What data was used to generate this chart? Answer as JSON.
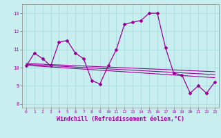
{
  "xlabel": "Windchill (Refroidissement éolien,°C)",
  "ylabel": "",
  "background_color": "#c8eef0",
  "line_color": "#990099",
  "xlim": [
    -0.5,
    23.5
  ],
  "ylim": [
    7.8,
    13.5
  ],
  "yticks": [
    8,
    9,
    10,
    11,
    12,
    13
  ],
  "xticks": [
    0,
    1,
    2,
    3,
    4,
    5,
    6,
    7,
    8,
    9,
    10,
    11,
    12,
    13,
    14,
    15,
    16,
    17,
    18,
    19,
    20,
    21,
    22,
    23
  ],
  "main_series": [
    [
      0,
      10.1
    ],
    [
      1,
      10.8
    ],
    [
      2,
      10.5
    ],
    [
      3,
      10.1
    ],
    [
      4,
      11.4
    ],
    [
      5,
      11.5
    ],
    [
      6,
      10.8
    ],
    [
      7,
      10.5
    ],
    [
      8,
      9.3
    ],
    [
      9,
      9.1
    ],
    [
      10,
      10.1
    ],
    [
      11,
      11.0
    ],
    [
      12,
      12.4
    ],
    [
      13,
      12.5
    ],
    [
      14,
      12.6
    ],
    [
      15,
      13.0
    ],
    [
      16,
      13.0
    ],
    [
      17,
      11.1
    ],
    [
      18,
      9.7
    ],
    [
      19,
      9.6
    ],
    [
      20,
      8.6
    ],
    [
      21,
      9.0
    ],
    [
      22,
      8.6
    ],
    [
      23,
      9.2
    ]
  ],
  "regression_lines": [
    {
      "x_start": 0,
      "y_start": 10.13,
      "x_end": 23,
      "y_end": 9.45
    },
    {
      "x_start": 0,
      "y_start": 10.18,
      "x_end": 23,
      "y_end": 9.62
    },
    {
      "x_start": 0,
      "y_start": 10.23,
      "x_end": 23,
      "y_end": 9.78
    }
  ],
  "grid_color": "#aadddd",
  "tick_fontsize": 4.5,
  "xlabel_fontsize": 6.0
}
